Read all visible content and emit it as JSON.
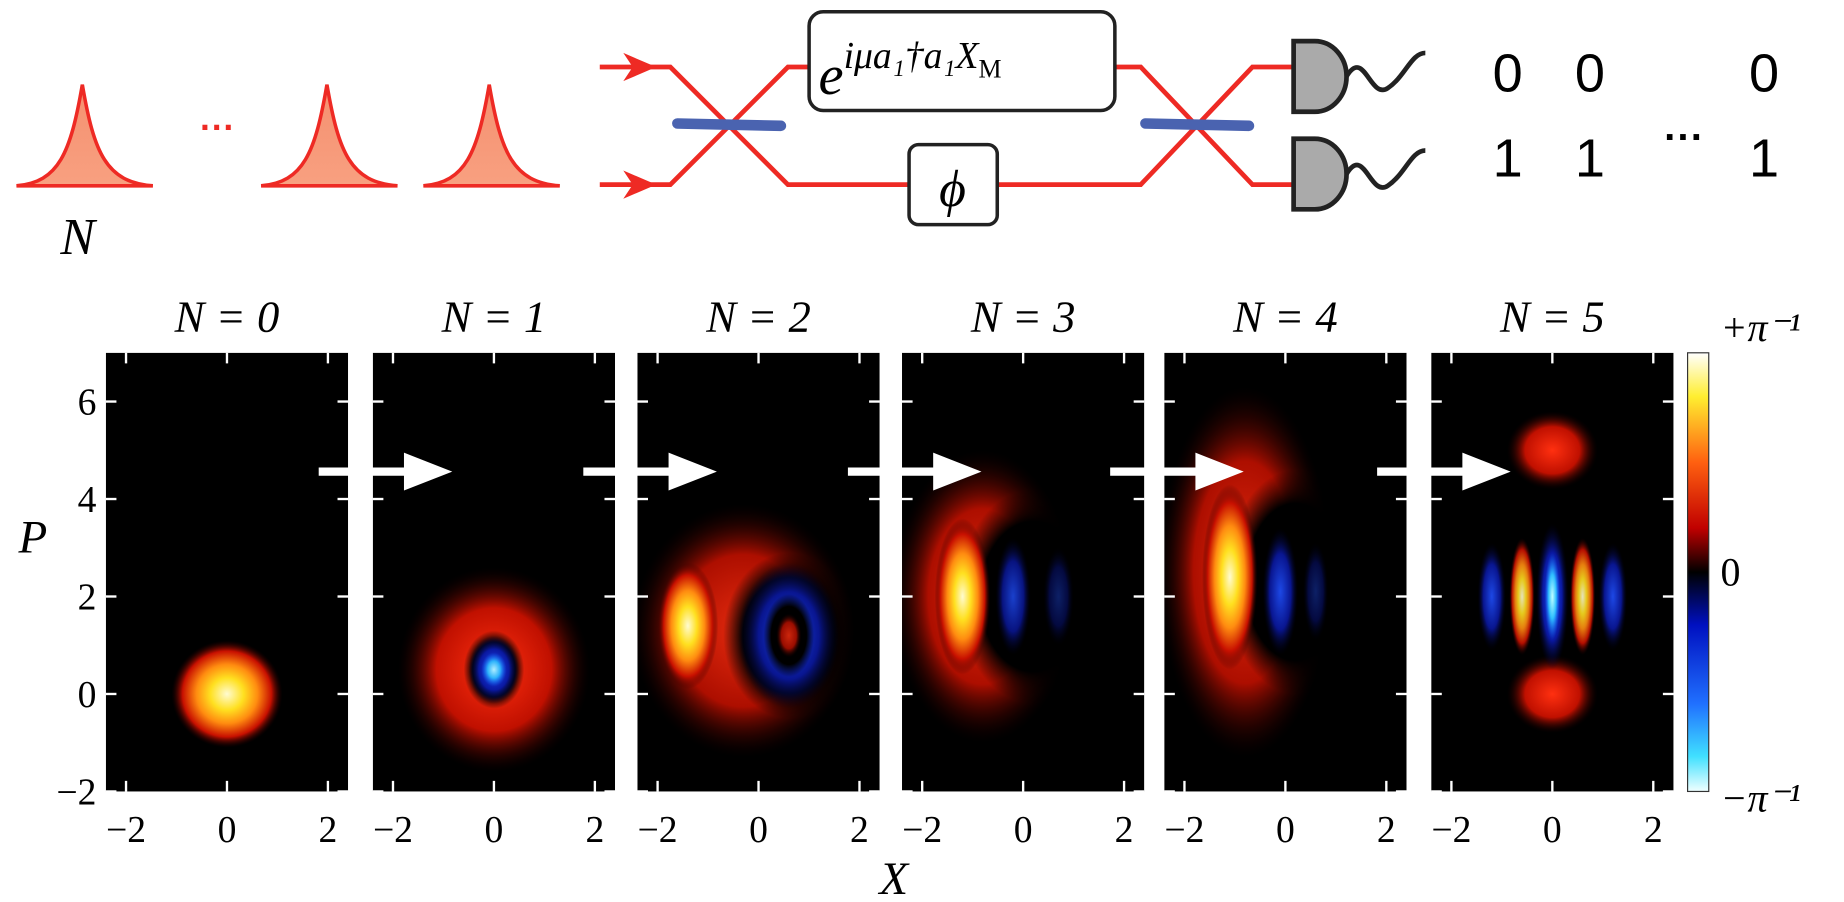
{
  "diagram": {
    "pulse_label": "N",
    "pulse_ellipsis": "···",
    "gate_base": "e",
    "gate_exponent": "iμa₁†a₁X",
    "gate_subscript": "M",
    "phase_label": "ϕ",
    "outcomes": {
      "rows": [
        [
          "0",
          "0",
          "0"
        ],
        [
          "1",
          "1",
          "1"
        ]
      ],
      "ellipsis": "···"
    }
  },
  "panels": {
    "titles": [
      "N = 0",
      "N = 1",
      "N = 2",
      "N = 3",
      "N = 4",
      "N = 5"
    ],
    "xlabel": "X",
    "ylabel": "P",
    "xlim": [
      -2.4,
      2.4
    ],
    "ylim": [
      -2,
      7
    ],
    "xticks": [
      {
        "value": -2,
        "label": "−2"
      },
      0,
      2
    ],
    "yticks": [
      {
        "value": -2,
        "label": "−2"
      },
      0,
      2,
      4,
      6
    ]
  },
  "colorbar": {
    "top_label": "+π⁻¹",
    "middle_label": "0",
    "bottom_label": "−π⁻¹"
  }
}
